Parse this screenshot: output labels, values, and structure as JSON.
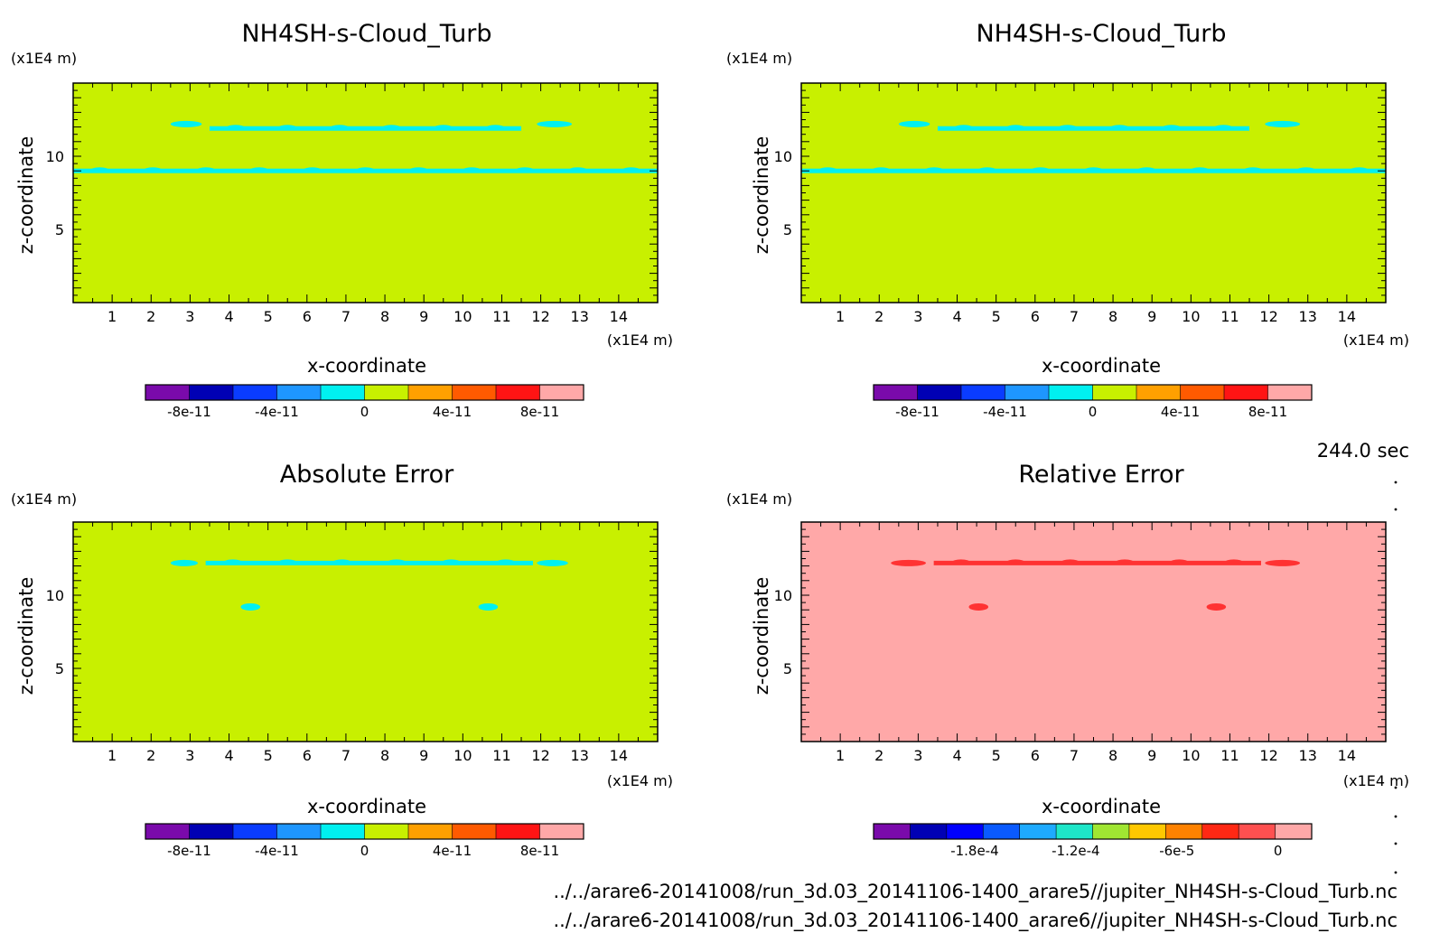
{
  "time_label": "244.0 sec",
  "footer": {
    "line1": "../../arare6-20141008/run_3d.03_20141106-1400_arare5//jupiter_NH4SH-s-Cloud_Turb.nc",
    "line2": "../../arare6-20141008/run_3d.03_20141106-1400_arare6//jupiter_NH4SH-s-Cloud_Turb.nc"
  },
  "palette": [
    "#7a0aab",
    "#0000b4",
    "#0a3cff",
    "#1e96ff",
    "#00f0f0",
    "#c8f000",
    "#ffa000",
    "#ff5a00",
    "#ff1414",
    "#ffa8a8"
  ],
  "palette_relative": [
    "#7a0aab",
    "#0000b4",
    "#0000ff",
    "#0a5aff",
    "#1eaaff",
    "#1ee6c8",
    "#a0e632",
    "#ffc800",
    "#ff8200",
    "#ff2814",
    "#ff5050",
    "#ffa8a8"
  ],
  "chart_data": [
    {
      "type": "heatmap",
      "title": "NH4SH-s-Cloud_Turb",
      "xlabel": "x-coordinate",
      "ylabel": "z-coordinate",
      "x_unit": "(x1E4 m)",
      "y_unit": "(x1E4 m)",
      "xlim": [
        0,
        15
      ],
      "ylim": [
        0,
        15
      ],
      "x_ticks": [
        1,
        2,
        3,
        4,
        5,
        6,
        7,
        8,
        9,
        10,
        11,
        12,
        13,
        14
      ],
      "y_ticks": [
        5,
        10
      ],
      "background_color": "#c8f000",
      "features": [
        {
          "color": "#00f0f0",
          "kind": "band",
          "x": [
            0,
            15
          ],
          "z": 9.0
        },
        {
          "color": "#00f0f0",
          "kind": "band",
          "x": [
            3.5,
            11.5
          ],
          "z": 11.9
        },
        {
          "color": "#00f0f0",
          "kind": "cap",
          "x": [
            2.5,
            3.3
          ],
          "z": 12.2
        },
        {
          "color": "#00f0f0",
          "kind": "cap",
          "x": [
            11.9,
            12.8
          ],
          "z": 12.2
        }
      ],
      "colorbar": {
        "range": [
          -1e-10,
          1e-10
        ],
        "levels": 10,
        "ticks": [
          {
            "value": -8e-11,
            "label": "-8e-11"
          },
          {
            "value": -4e-11,
            "label": "-4e-11"
          },
          {
            "value": 0,
            "label": "0"
          },
          {
            "value": 4e-11,
            "label": "4e-11"
          },
          {
            "value": 8e-11,
            "label": "8e-11"
          }
        ]
      }
    },
    {
      "type": "heatmap",
      "title": "NH4SH-s-Cloud_Turb",
      "xlabel": "x-coordinate",
      "ylabel": "z-coordinate",
      "x_unit": "(x1E4 m)",
      "y_unit": "(x1E4 m)",
      "xlim": [
        0,
        15
      ],
      "ylim": [
        0,
        15
      ],
      "x_ticks": [
        1,
        2,
        3,
        4,
        5,
        6,
        7,
        8,
        9,
        10,
        11,
        12,
        13,
        14
      ],
      "y_ticks": [
        5,
        10
      ],
      "background_color": "#c8f000",
      "features": [
        {
          "color": "#00f0f0",
          "kind": "band",
          "x": [
            0,
            15
          ],
          "z": 9.0
        },
        {
          "color": "#00f0f0",
          "kind": "band",
          "x": [
            3.5,
            11.5
          ],
          "z": 11.9
        },
        {
          "color": "#00f0f0",
          "kind": "cap",
          "x": [
            2.5,
            3.3
          ],
          "z": 12.2
        },
        {
          "color": "#00f0f0",
          "kind": "cap",
          "x": [
            11.9,
            12.8
          ],
          "z": 12.2
        }
      ],
      "colorbar": {
        "range": [
          -1e-10,
          1e-10
        ],
        "levels": 10,
        "ticks": [
          {
            "value": -8e-11,
            "label": "-8e-11"
          },
          {
            "value": -4e-11,
            "label": "-4e-11"
          },
          {
            "value": 0,
            "label": "0"
          },
          {
            "value": 4e-11,
            "label": "4e-11"
          },
          {
            "value": 8e-11,
            "label": "8e-11"
          }
        ]
      }
    },
    {
      "type": "heatmap",
      "title": "Absolute Error",
      "xlabel": "x-coordinate",
      "ylabel": "z-coordinate",
      "x_unit": "(x1E4 m)",
      "y_unit": "(x1E4 m)",
      "xlim": [
        0,
        15
      ],
      "ylim": [
        0,
        15
      ],
      "x_ticks": [
        1,
        2,
        3,
        4,
        5,
        6,
        7,
        8,
        9,
        10,
        11,
        12,
        13,
        14
      ],
      "y_ticks": [
        5,
        10
      ],
      "background_color": "#c8f000",
      "features": [
        {
          "color": "#00f0f0",
          "kind": "band",
          "x": [
            3.4,
            11.8
          ],
          "z": 12.2
        },
        {
          "color": "#00f0f0",
          "kind": "cap",
          "x": [
            2.5,
            3.2
          ],
          "z": 12.2
        },
        {
          "color": "#00f0f0",
          "kind": "cap",
          "x": [
            11.9,
            12.7
          ],
          "z": 12.2
        },
        {
          "color": "#00f0f0",
          "kind": "blob",
          "x": [
            4.3,
            4.8
          ],
          "z": 9.2
        },
        {
          "color": "#00f0f0",
          "kind": "blob",
          "x": [
            10.4,
            10.9
          ],
          "z": 9.2
        }
      ],
      "colorbar": {
        "range": [
          -1e-10,
          1e-10
        ],
        "levels": 10,
        "ticks": [
          {
            "value": -8e-11,
            "label": "-8e-11"
          },
          {
            "value": -4e-11,
            "label": "-4e-11"
          },
          {
            "value": 0,
            "label": "0"
          },
          {
            "value": 4e-11,
            "label": "4e-11"
          },
          {
            "value": 8e-11,
            "label": "8e-11"
          }
        ]
      }
    },
    {
      "type": "heatmap",
      "title": "Relative Error",
      "xlabel": "x-coordinate",
      "ylabel": "z-coordinate",
      "x_unit": "(x1E4 m)",
      "y_unit": "(x1E4 m)",
      "xlim": [
        0,
        15
      ],
      "ylim": [
        0,
        15
      ],
      "x_ticks": [
        1,
        2,
        3,
        4,
        5,
        6,
        7,
        8,
        9,
        10,
        11,
        12,
        13,
        14
      ],
      "y_ticks": [
        5,
        10
      ],
      "background_color": "#ffa8a8",
      "features": [
        {
          "color": "#ff3232",
          "kind": "band",
          "x": [
            3.4,
            11.8
          ],
          "z": 12.2
        },
        {
          "color": "#ff3232",
          "kind": "cap",
          "x": [
            2.3,
            3.2
          ],
          "z": 12.2
        },
        {
          "color": "#ff3232",
          "kind": "cap",
          "x": [
            11.9,
            12.8
          ],
          "z": 12.2
        },
        {
          "color": "#ff3232",
          "kind": "blob",
          "x": [
            4.3,
            4.8
          ],
          "z": 9.2
        },
        {
          "color": "#ff3232",
          "kind": "blob",
          "x": [
            10.4,
            10.9
          ],
          "z": 9.2
        }
      ],
      "colorbar": {
        "range": [
          -0.00024,
          2e-05
        ],
        "levels": 12,
        "ticks": [
          {
            "value": -0.00018,
            "label": "-1.8e-4"
          },
          {
            "value": -0.00012,
            "label": "-1.2e-4"
          },
          {
            "value": -6e-05,
            "label": "-6e-5"
          },
          {
            "value": 0,
            "label": "0"
          }
        ]
      }
    }
  ]
}
